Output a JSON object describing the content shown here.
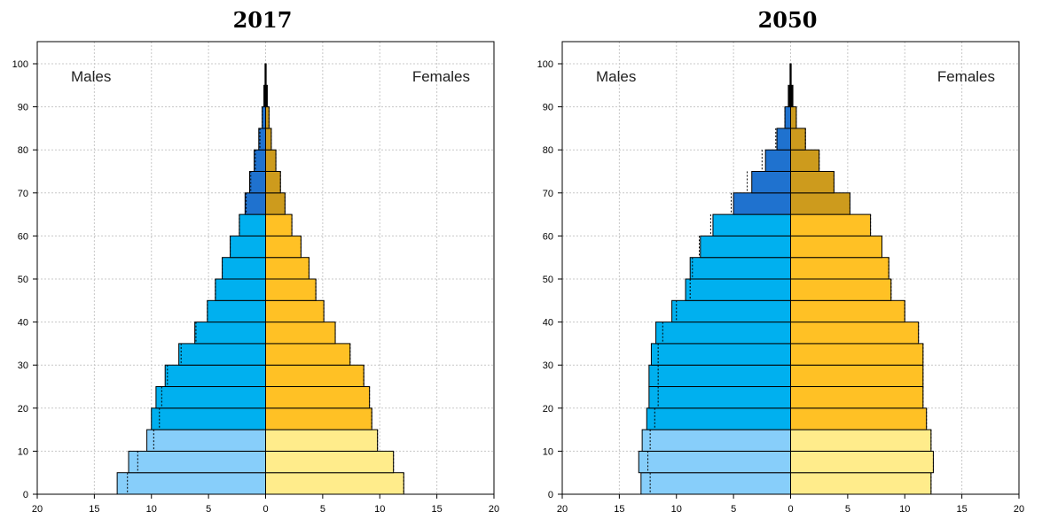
{
  "chart_data": [
    {
      "type": "bar",
      "orientation": "horizontal-pyramid",
      "title": "2017",
      "male_label": "Males",
      "female_label": "Females",
      "x_ticks": [
        "20",
        "15",
        "10",
        "5",
        "0",
        "5",
        "10",
        "15",
        "20"
      ],
      "y_ticks": [
        "0",
        "10",
        "20",
        "30",
        "40",
        "50",
        "60",
        "70",
        "80",
        "90",
        "100"
      ],
      "xlim": [
        -20,
        20
      ],
      "ylim": [
        0,
        100
      ],
      "age_group_starts": [
        0,
        5,
        10,
        15,
        20,
        25,
        30,
        35,
        40,
        45,
        50,
        55,
        60,
        65,
        70,
        75,
        80,
        85,
        90,
        95
      ],
      "males": [
        13.0,
        12.0,
        10.4,
        10.0,
        9.6,
        8.8,
        7.6,
        6.2,
        5.1,
        4.4,
        3.8,
        3.1,
        2.3,
        1.8,
        1.4,
        1.0,
        0.6,
        0.3,
        0.15,
        0.05
      ],
      "females": [
        12.1,
        11.2,
        9.8,
        9.3,
        9.1,
        8.6,
        7.4,
        6.1,
        5.1,
        4.4,
        3.8,
        3.1,
        2.3,
        1.7,
        1.3,
        0.9,
        0.5,
        0.3,
        0.15,
        0.05
      ],
      "males_dotted": [
        12.1,
        11.2,
        9.8,
        9.3,
        9.1,
        8.6,
        7.4,
        6.1,
        5.1,
        4.4,
        3.8,
        3.1,
        2.3,
        1.7,
        1.3,
        0.9,
        0.5,
        0.3,
        0.15,
        0.05
      ],
      "females_dotted": [
        12.1,
        11.2,
        9.8,
        9.3,
        9.1,
        8.6,
        7.4,
        6.1,
        5.1,
        4.4,
        3.8,
        3.1,
        2.3,
        1.7,
        1.3,
        0.9,
        0.5,
        0.3,
        0.15,
        0.05
      ],
      "grid": true
    },
    {
      "type": "bar",
      "orientation": "horizontal-pyramid",
      "title": "2050",
      "male_label": "Males",
      "female_label": "Females",
      "x_ticks": [
        "20",
        "15",
        "10",
        "5",
        "0",
        "5",
        "10",
        "15",
        "20"
      ],
      "y_ticks": [
        "0",
        "10",
        "20",
        "30",
        "40",
        "50",
        "60",
        "70",
        "80",
        "90",
        "100"
      ],
      "xlim": [
        -20,
        20
      ],
      "ylim": [
        0,
        100
      ],
      "age_group_starts": [
        0,
        5,
        10,
        15,
        20,
        25,
        30,
        35,
        40,
        45,
        50,
        55,
        60,
        65,
        70,
        75,
        80,
        85,
        90,
        95
      ],
      "males": [
        13.1,
        13.3,
        13.0,
        12.6,
        12.4,
        12.4,
        12.2,
        11.8,
        10.4,
        9.2,
        8.8,
        7.9,
        6.8,
        5.0,
        3.4,
        2.2,
        1.2,
        0.5,
        0.2,
        0.05
      ],
      "females": [
        12.3,
        12.5,
        12.3,
        11.9,
        11.6,
        11.6,
        11.6,
        11.2,
        10.0,
        8.8,
        8.6,
        8.0,
        7.0,
        5.2,
        3.8,
        2.5,
        1.3,
        0.5,
        0.2,
        0.05
      ],
      "males_dotted": [
        12.3,
        12.5,
        12.3,
        11.9,
        11.6,
        11.6,
        11.6,
        11.2,
        10.0,
        8.8,
        8.6,
        8.0,
        7.0,
        5.2,
        3.8,
        2.5,
        1.3,
        0.5,
        0.2,
        0.05
      ],
      "females_dotted": [
        12.3,
        12.5,
        12.3,
        11.9,
        11.6,
        11.6,
        11.6,
        11.2,
        10.0,
        8.8,
        8.6,
        8.0,
        7.0,
        5.2,
        3.8,
        2.5,
        1.3,
        0.5,
        0.2,
        0.05
      ],
      "grid": true
    }
  ],
  "colors": {
    "male_young": "#87cefa",
    "male_adult": "#00b0ef",
    "male_old": "#1f72cf",
    "female_young": "#ffec8b",
    "female_adult": "#ffc125",
    "female_old": "#cd9b1d",
    "grid": "#c8c8c8",
    "outline": "#000000"
  }
}
